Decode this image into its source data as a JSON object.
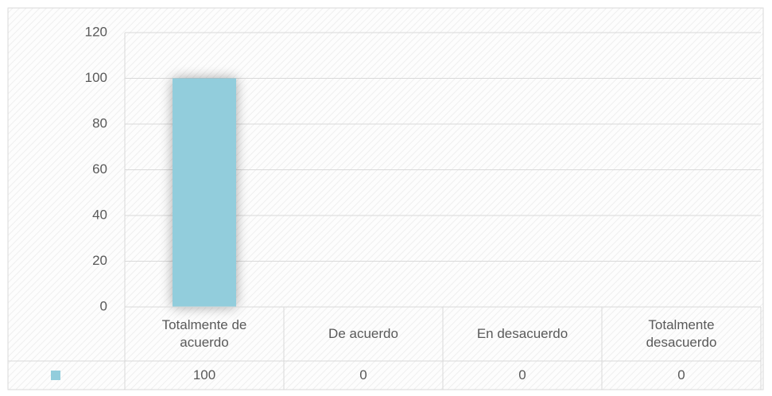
{
  "chart_data": {
    "type": "bar",
    "categories": [
      "Totalmente de acuerdo",
      "De acuerdo",
      "En desacuerdo",
      "Totalmente desacuerdo"
    ],
    "values": [
      100,
      0,
      0,
      0
    ],
    "color": "#92cddc",
    "ylim": [
      0,
      120
    ],
    "yticks": [
      0,
      20,
      40,
      60,
      80,
      100,
      120
    ],
    "grid": true,
    "data_table": true
  }
}
